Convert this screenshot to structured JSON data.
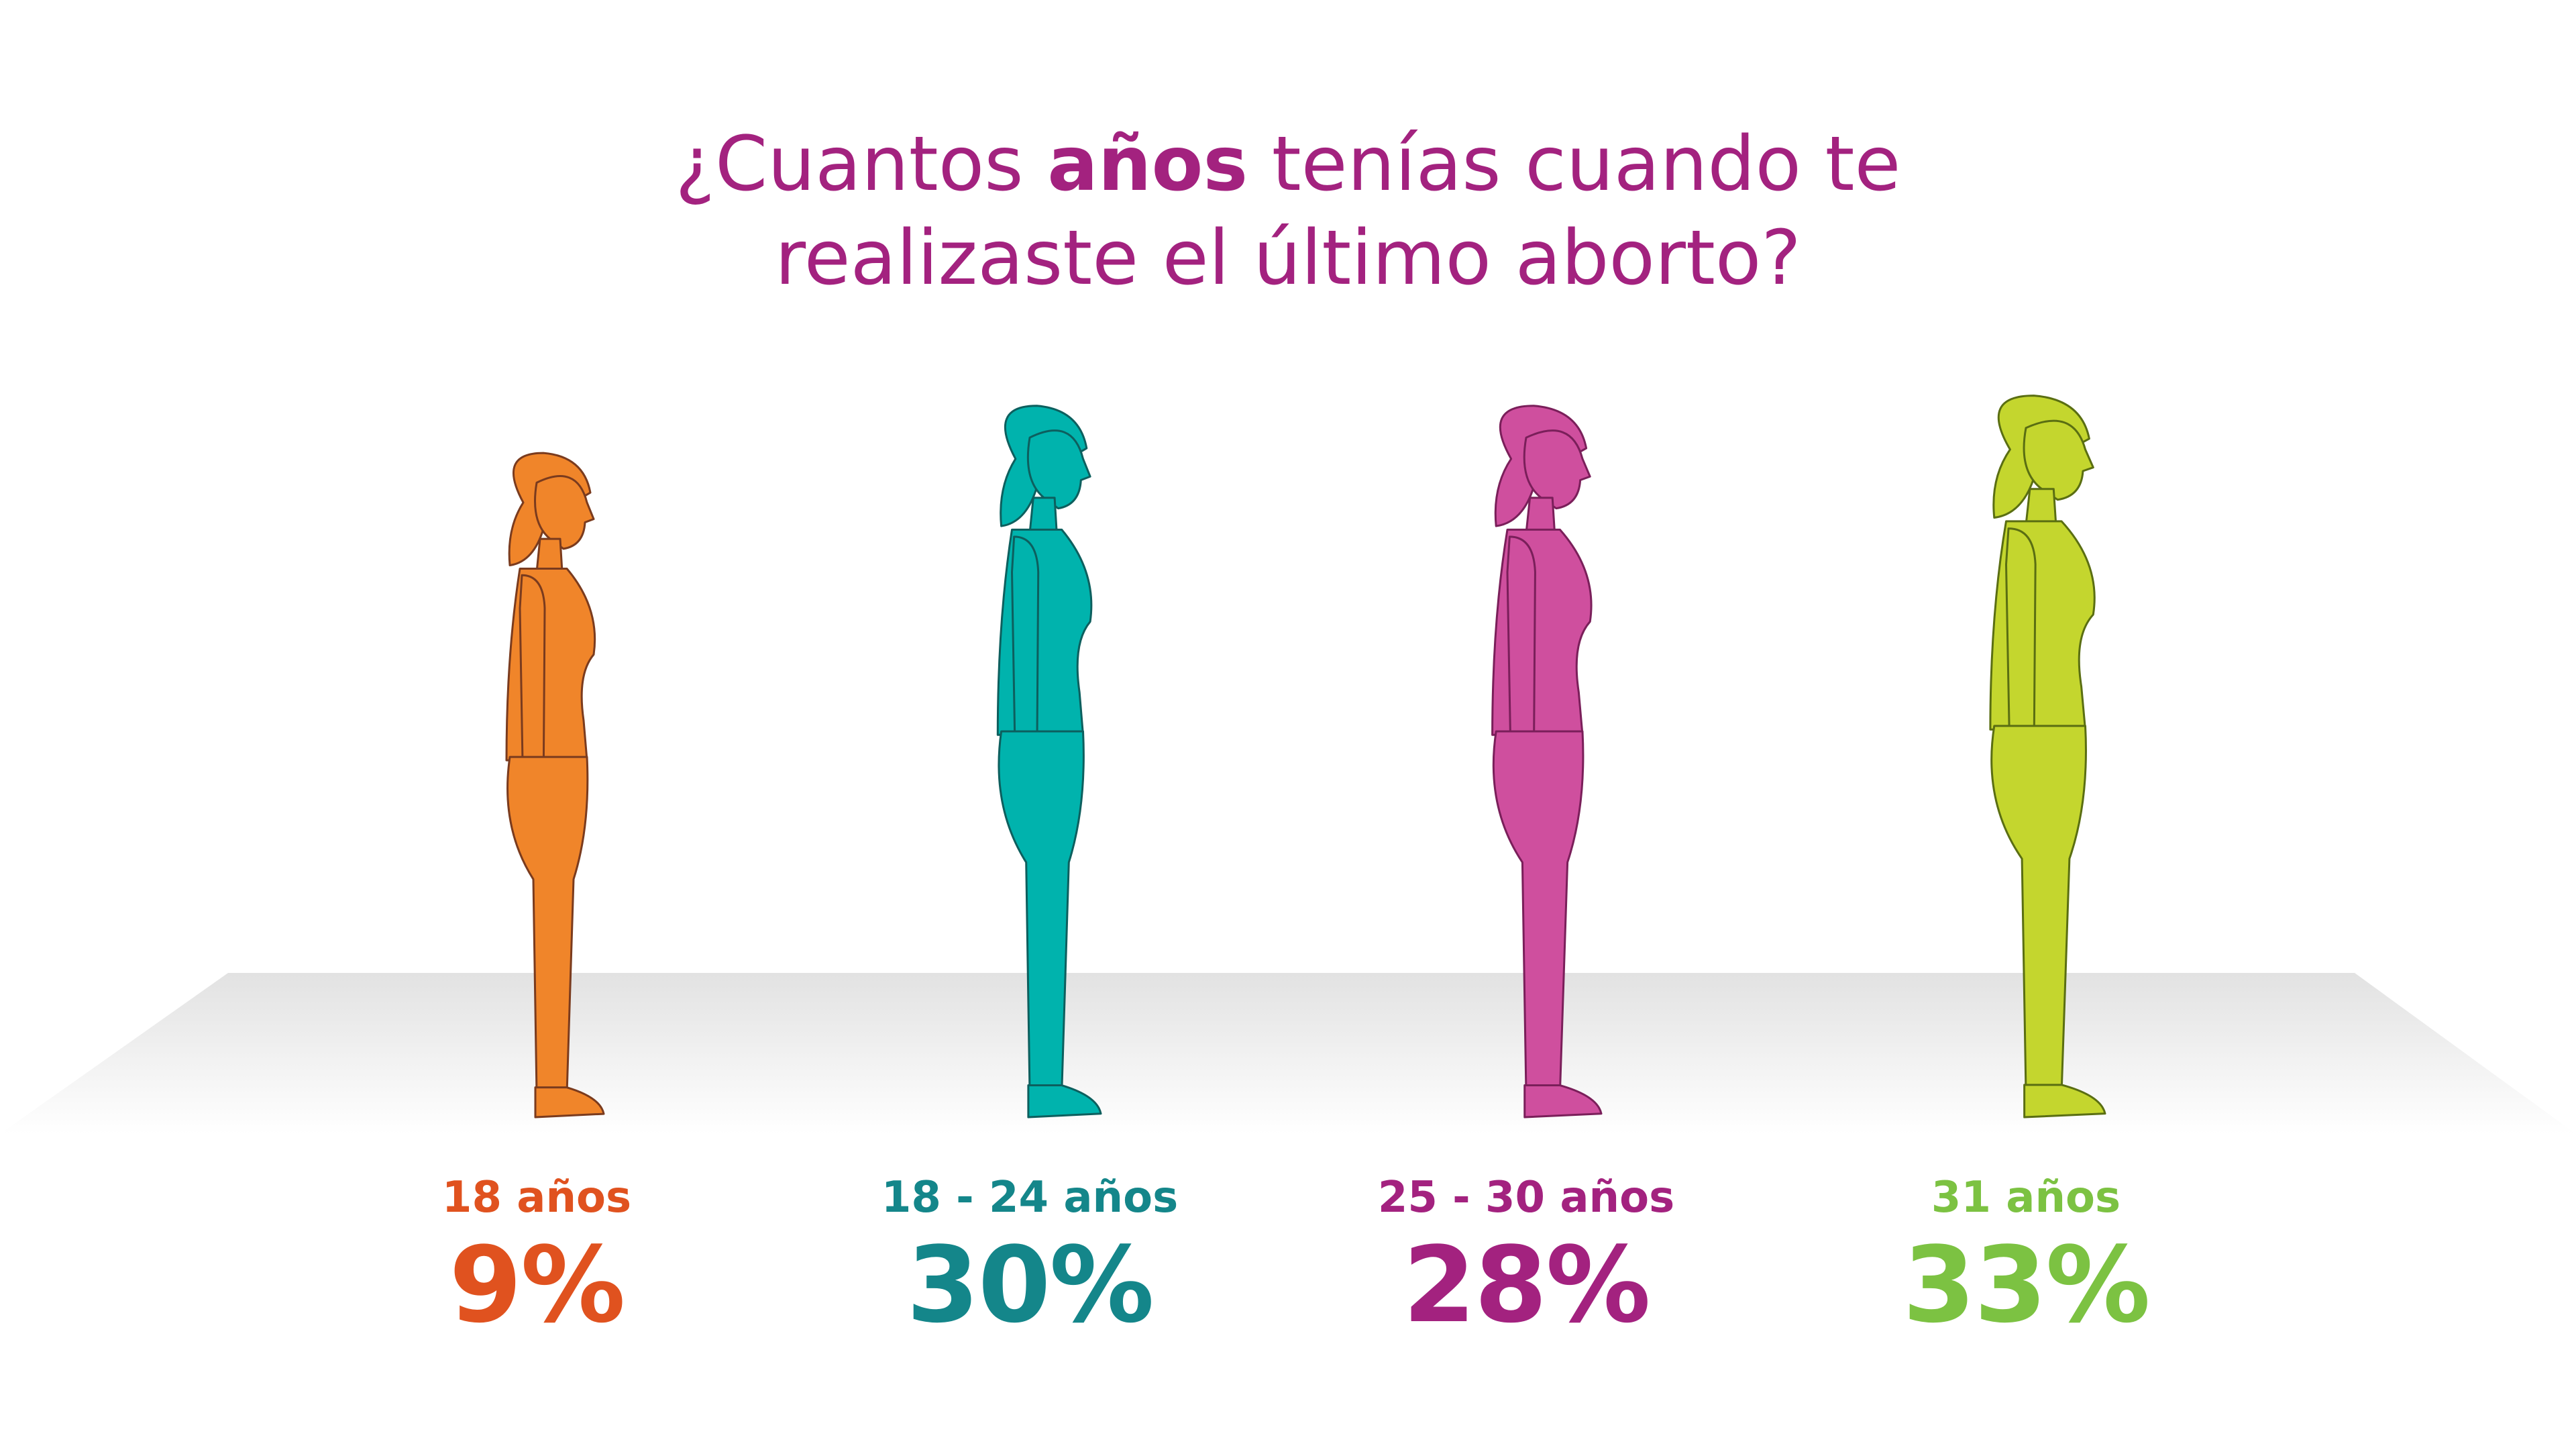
{
  "title": {
    "line1_pre": "¿Cuantos ",
    "line1_bold": "años",
    "line1_post": " tenías cuando te",
    "line2": "realizaste el último aborto?",
    "color": "#a3227f"
  },
  "chart_data": {
    "type": "pictograph",
    "title": "¿Cuantos años tenías cuando te realizaste el último aborto?",
    "categories": [
      "18 años",
      "18 - 24 años",
      "25 - 30 años",
      "31 años"
    ],
    "values": [
      9,
      30,
      28,
      33
    ],
    "value_labels": [
      "9%",
      "30%",
      "28%",
      "33%"
    ],
    "unit": "%",
    "colors": {
      "figures": [
        "#f0852a",
        "#00b3ad",
        "#cf4f9e",
        "#c4d62e"
      ],
      "labels": [
        "#e0521f",
        "#14868a",
        "#a3227f",
        "#7cc242"
      ]
    }
  }
}
